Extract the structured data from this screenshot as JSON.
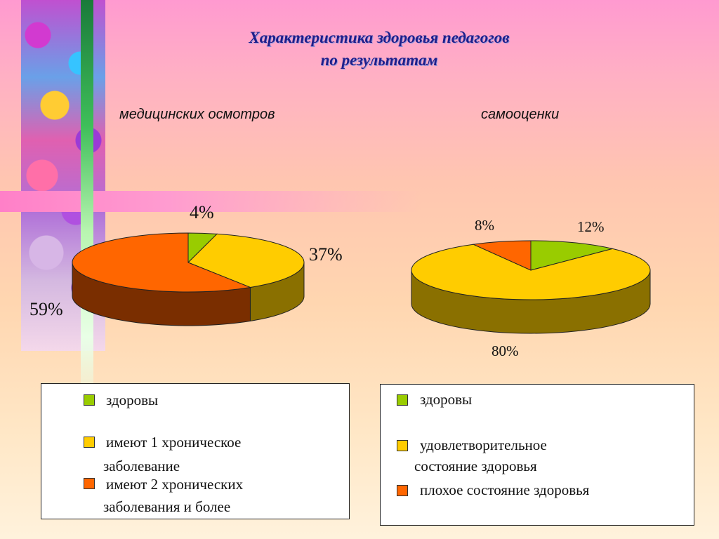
{
  "title": {
    "line1": "Характеристика здоровья педагогов",
    "line2": "по результатам"
  },
  "colors": {
    "green": "#99cc00",
    "yellow": "#ffcc00",
    "orange": "#ff6600",
    "green_side": "#5a7a00",
    "yellow_side": "#8a7000",
    "orange_side": "#7a2e00"
  },
  "chart_data": [
    {
      "type": "pie",
      "title": "медицинских осмотров",
      "labels": [
        "здоровы",
        "имеют 1 хроническое заболевание",
        "имеют 2 хронических заболевания и более"
      ],
      "values": [
        4,
        37,
        59
      ],
      "value_labels": [
        "4%",
        "37%",
        "59%"
      ],
      "legend": {
        "items": [
          {
            "text1": "здоровы",
            "text2": ""
          },
          {
            "text1": "имеют 1 хроническое",
            "text2": "заболевание"
          },
          {
            "text1": "имеют 2 хронических",
            "text2": "заболевания и более"
          }
        ]
      }
    },
    {
      "type": "pie",
      "title": "самооценки",
      "labels": [
        "здоровы",
        "удовлетворительное состояние здоровья",
        "плохое состояние здоровья"
      ],
      "values": [
        12,
        80,
        8
      ],
      "value_labels": [
        "12%",
        "80%",
        "8%"
      ],
      "legend": {
        "items": [
          {
            "text1": "здоровы",
            "text2": ""
          },
          {
            "text1": "удовлетворительное",
            "text2": "состояние здоровья"
          },
          {
            "text1": "плохое состояние здоровья",
            "text2": ""
          }
        ]
      }
    }
  ]
}
